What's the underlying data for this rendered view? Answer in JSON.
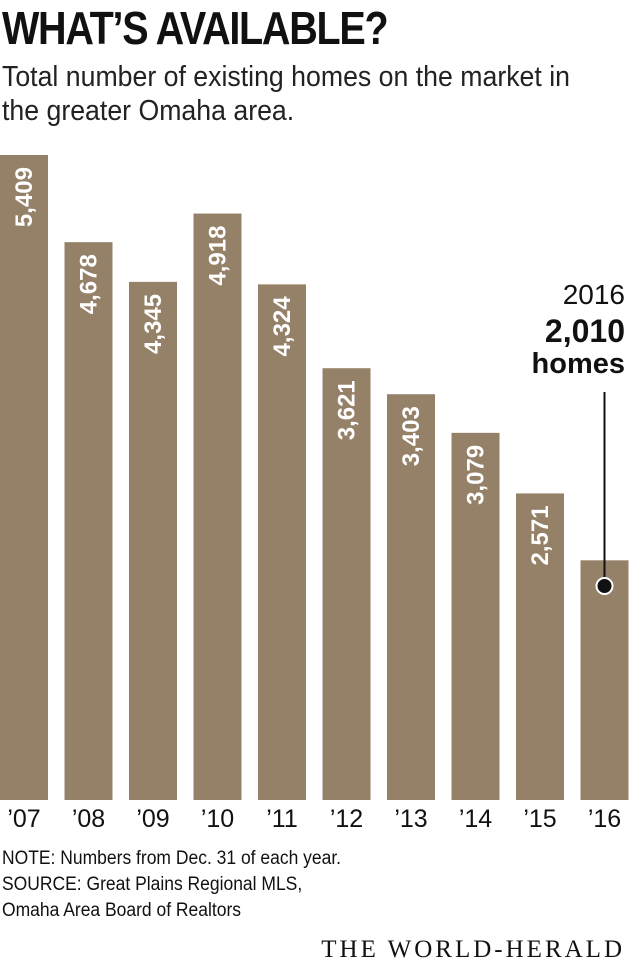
{
  "title": "WHAT’S AVAILABLE?",
  "subtitle": "Total number of existing homes on the market in the greater Omaha area.",
  "colors": {
    "bar": "#958168",
    "bar_label": "#ffffff",
    "text": "#111111",
    "marker": "#111111"
  },
  "chart_data": {
    "type": "bar",
    "categories": [
      "’07",
      "’08",
      "’09",
      "’10",
      "’11",
      "’12",
      "’13",
      "’14",
      "’15",
      "’16"
    ],
    "values": [
      5409,
      4678,
      4345,
      4918,
      4324,
      3621,
      3403,
      3079,
      2571,
      2010
    ],
    "value_labels": [
      "5,409",
      "4,678",
      "4,345",
      "4,918",
      "4,324",
      "3,621",
      "3,403",
      "3,079",
      "2,571",
      ""
    ],
    "ylim": [
      0,
      5409
    ],
    "grid": false,
    "annotation": {
      "category": "’16",
      "year": "2016",
      "value": "2,010",
      "unit": "homes"
    }
  },
  "footer": {
    "note": "NOTE: Numbers from Dec. 31 of each year.",
    "source_line1": "SOURCE: Great Plains Regional MLS,",
    "source_line2": "Omaha Area Board of Realtors",
    "brand": "THE WORLD-HERALD"
  }
}
